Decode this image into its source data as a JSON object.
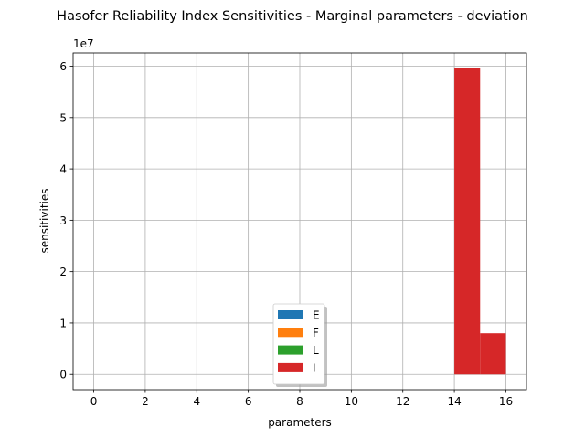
{
  "chart_data": {
    "type": "bar",
    "title": "Hasofer Reliability Index Sensitivities - Marginal parameters - deviation",
    "xlabel": "parameters",
    "ylabel": "sensitivities",
    "y_multiplier": "1e7",
    "xlim": [
      -0.8,
      16.8
    ],
    "ylim": [
      -2980000,
      62580000
    ],
    "xticks": [
      0,
      2,
      4,
      6,
      8,
      10,
      12,
      14,
      16
    ],
    "xtick_labels": [
      "0",
      "2",
      "4",
      "6",
      "8",
      "10",
      "12",
      "14",
      "16"
    ],
    "yticks": [
      0,
      10000000,
      20000000,
      30000000,
      40000000,
      50000000,
      60000000
    ],
    "ytick_labels": [
      "0",
      "1",
      "2",
      "3",
      "4",
      "5",
      "6"
    ],
    "grid": true,
    "legend_placement": "lower-center",
    "series": [
      {
        "name": "E",
        "color": "#1f77b4",
        "bars": [
          {
            "x": 0,
            "width": 1,
            "value": 0
          },
          {
            "x": 1,
            "width": 1,
            "value": 0
          },
          {
            "x": 2,
            "width": 1,
            "value": 0
          }
        ]
      },
      {
        "name": "F",
        "color": "#ff7f0e",
        "bars": [
          {
            "x": 3,
            "width": 1,
            "value": 0
          },
          {
            "x": 4,
            "width": 1,
            "value": 0
          },
          {
            "x": 5,
            "width": 1,
            "value": 0
          },
          {
            "x": 6,
            "width": 1,
            "value": 0
          },
          {
            "x": 7,
            "width": 1,
            "value": 0
          },
          {
            "x": 8,
            "width": 1,
            "value": 0
          },
          {
            "x": 9,
            "width": 1,
            "value": 0
          },
          {
            "x": 10,
            "width": 1,
            "value": 0
          }
        ]
      },
      {
        "name": "L",
        "color": "#2ca02c",
        "bars": [
          {
            "x": 11,
            "width": 1,
            "value": 0
          },
          {
            "x": 12,
            "width": 1,
            "value": 0
          },
          {
            "x": 13,
            "width": 1,
            "value": 0
          }
        ]
      },
      {
        "name": "I",
        "color": "#d62728",
        "bars": [
          {
            "x": 14,
            "width": 1,
            "value": 59600000
          },
          {
            "x": 15,
            "width": 1,
            "value": 8000000
          }
        ]
      }
    ]
  }
}
